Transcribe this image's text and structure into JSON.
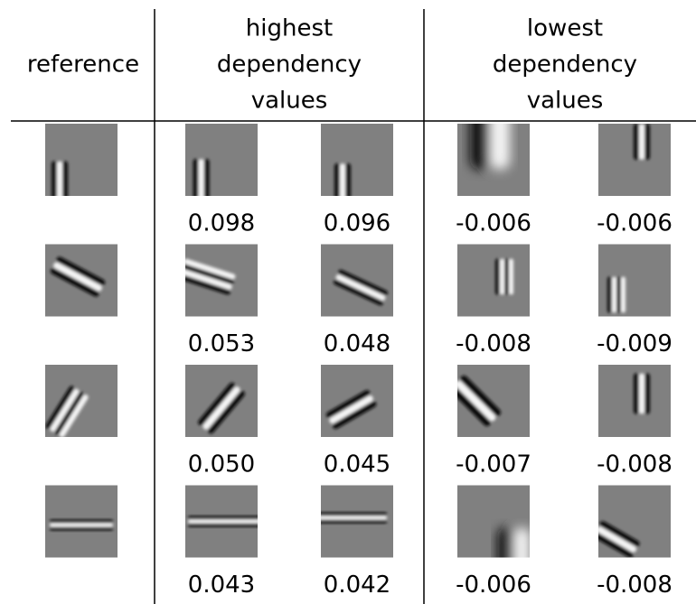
{
  "header": {
    "reference": "reference",
    "highest": [
      "highest",
      "dependency",
      "values"
    ],
    "lowest": [
      "lowest",
      "dependency",
      "values"
    ]
  },
  "rows": [
    {
      "highest": [
        "0.098",
        "0.096"
      ],
      "lowest": [
        "-0.006",
        "-0.006"
      ]
    },
    {
      "highest": [
        "0.053",
        "0.048"
      ],
      "lowest": [
        "-0.008",
        "-0.009"
      ]
    },
    {
      "highest": [
        "0.050",
        "0.045"
      ],
      "lowest": [
        "-0.007",
        "-0.008"
      ]
    },
    {
      "highest": [
        "0.043",
        "0.042"
      ],
      "lowest": [
        "-0.006",
        "-0.008"
      ]
    }
  ]
}
